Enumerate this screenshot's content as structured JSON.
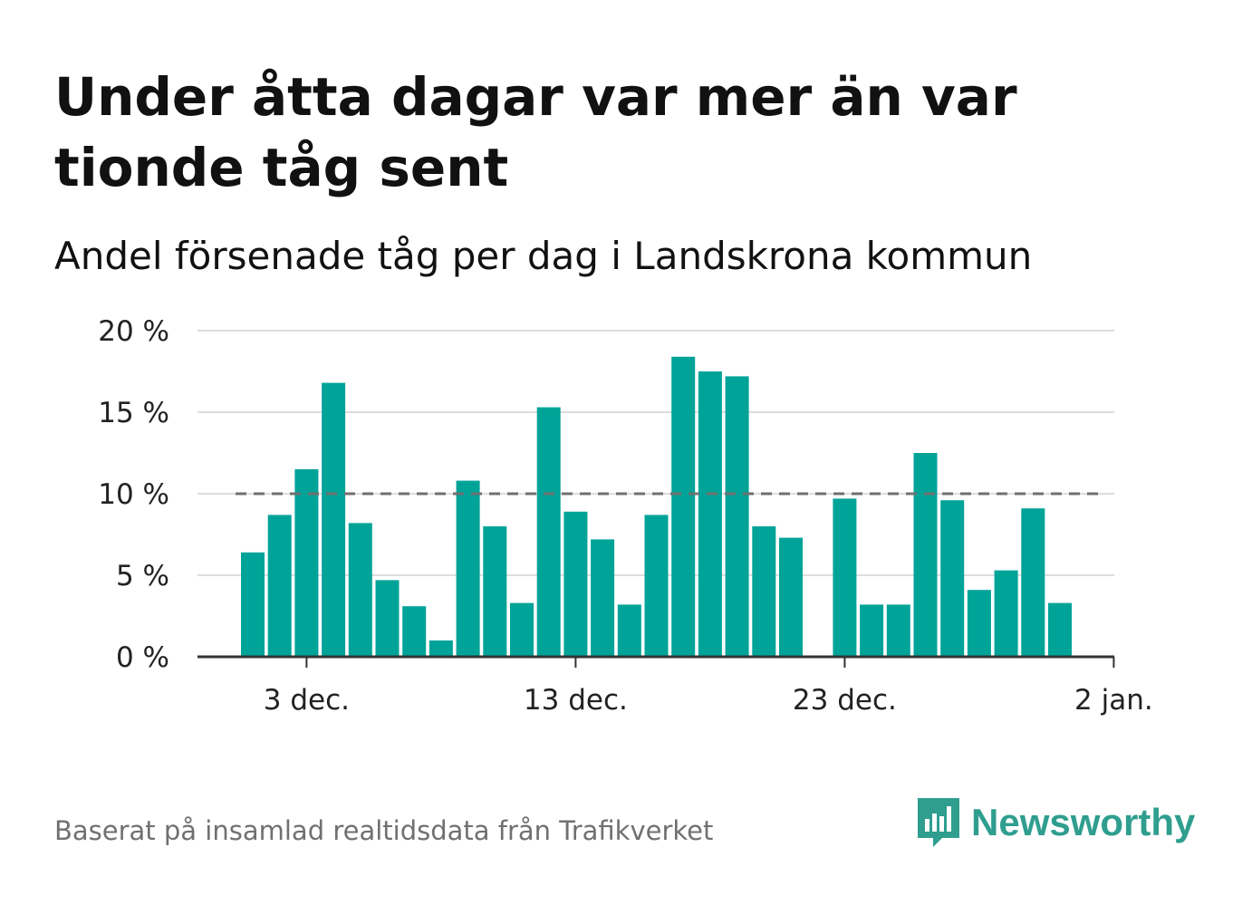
{
  "header": {
    "title": "Under åtta dagar var mer än var tionde tåg sent",
    "subtitle": "Andel försenade tåg per dag i Landskrona kommun"
  },
  "footer": {
    "source": "Baserat på insamlad realtidsdata från Trafikverket",
    "brand": "Newsworthy",
    "brand_icon": "newsworthy-logo-icon",
    "brand_color": "#2f9e8f"
  },
  "chart_data": {
    "type": "bar",
    "x": [
      "2023-12-01",
      "2023-12-02",
      "2023-12-03",
      "2023-12-04",
      "2023-12-05",
      "2023-12-06",
      "2023-12-07",
      "2023-12-08",
      "2023-12-09",
      "2023-12-10",
      "2023-12-11",
      "2023-12-12",
      "2023-12-13",
      "2023-12-14",
      "2023-12-15",
      "2023-12-16",
      "2023-12-17",
      "2023-12-18",
      "2023-12-19",
      "2023-12-20",
      "2023-12-21",
      "2023-12-22",
      "2023-12-23",
      "2023-12-24",
      "2023-12-25",
      "2023-12-26",
      "2023-12-27",
      "2023-12-28",
      "2023-12-29",
      "2023-12-30",
      "2023-12-31",
      "2024-01-01"
    ],
    "values": [
      6.4,
      8.7,
      11.5,
      16.8,
      8.2,
      4.7,
      3.1,
      1.0,
      10.8,
      8.0,
      3.3,
      15.3,
      8.9,
      7.2,
      3.2,
      8.7,
      18.4,
      17.5,
      17.2,
      8.0,
      7.3,
      null,
      9.7,
      3.2,
      3.2,
      12.5,
      9.6,
      4.1,
      5.3,
      9.1,
      3.3,
      null
    ],
    "ylim": [
      0,
      20
    ],
    "yticks": [
      0,
      5,
      10,
      15,
      20
    ],
    "ytick_labels": [
      "0 %",
      "5 %",
      "10 %",
      "15 %",
      "20 %"
    ],
    "xtick_labels": [
      "3 dec.",
      "13 dec.",
      "23 dec.",
      "2 jan."
    ],
    "xtick_dates": [
      "2023-12-03",
      "2023-12-13",
      "2023-12-23",
      "2024-01-02"
    ],
    "reference_line": 10,
    "bar_color": "#00a398",
    "reference_line_color": "#707070",
    "grid": true,
    "xlabel": "",
    "ylabel": ""
  }
}
